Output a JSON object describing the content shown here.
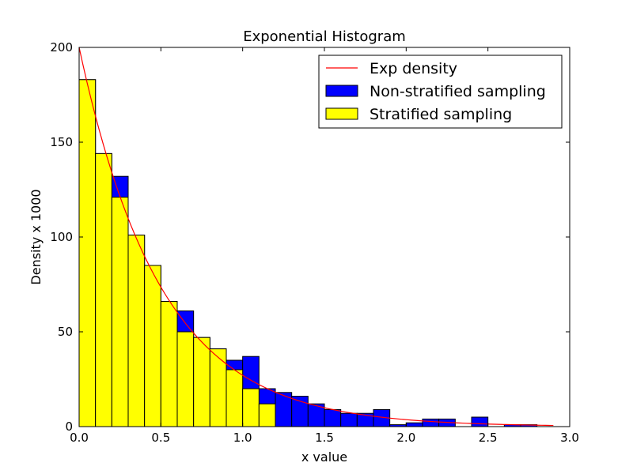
{
  "chart_data": {
    "type": "bar",
    "title": "Exponential Histogram",
    "xlabel": "x value",
    "ylabel": "Density x 1000",
    "xlim": [
      0.0,
      3.0
    ],
    "ylim": [
      0,
      200
    ],
    "xticks": [
      "0.0",
      "0.5",
      "1.0",
      "1.5",
      "2.0",
      "2.5",
      "3.0"
    ],
    "yticks": [
      "0",
      "50",
      "100",
      "150",
      "200"
    ],
    "grid": false,
    "legend_position": "top-right",
    "bin_width": 0.1,
    "bin_starts": [
      0.0,
      0.1,
      0.2,
      0.3,
      0.4,
      0.5,
      0.6,
      0.7,
      0.8,
      0.9,
      1.0,
      1.1,
      1.2,
      1.3,
      1.4,
      1.5,
      1.6,
      1.7,
      1.8,
      1.9,
      2.0,
      2.1,
      2.2,
      2.3,
      2.4,
      2.5,
      2.6,
      2.7,
      2.8,
      2.9
    ],
    "series": [
      {
        "name": "Non-stratified sampling",
        "color": "#0000ff",
        "values": [
          183,
          144,
          132,
          101,
          85,
          66,
          61,
          47,
          41,
          35,
          37,
          20,
          18,
          16,
          12,
          9,
          7,
          7,
          9,
          1,
          2,
          4,
          4,
          0,
          5,
          0,
          1,
          1,
          0,
          0
        ]
      },
      {
        "name": "Stratified sampling",
        "color": "#ffff00",
        "values": [
          183,
          144,
          121,
          101,
          85,
          66,
          50,
          47,
          41,
          30,
          20,
          12,
          0,
          0,
          0,
          0,
          0,
          0,
          0,
          0,
          0,
          0,
          0,
          0,
          0,
          0,
          0,
          0,
          0,
          0
        ]
      }
    ],
    "curve": {
      "name": "Exp density",
      "color": "#ff0000",
      "function": "200*exp(-2x)",
      "x_range": [
        0.0,
        2.9
      ]
    }
  }
}
